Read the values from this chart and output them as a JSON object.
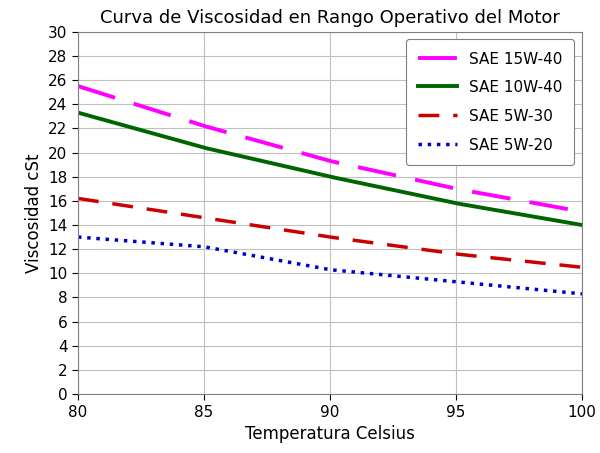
{
  "title": "Curva de Viscosidad en Rango Operativo del Motor",
  "xlabel": "Temperatura Celsius",
  "ylabel": "Viscosidad cSt",
  "xlim": [
    80,
    100
  ],
  "ylim": [
    0,
    30
  ],
  "xticks": [
    80,
    85,
    90,
    95,
    100
  ],
  "yticks": [
    0,
    2,
    4,
    6,
    8,
    10,
    12,
    14,
    16,
    18,
    20,
    22,
    24,
    26,
    28,
    30
  ],
  "series": [
    {
      "label": "SAE 15W-40",
      "x": [
        80,
        85,
        90,
        95,
        100
      ],
      "y": [
        25.5,
        22.2,
        19.3,
        17.0,
        15.1
      ],
      "color": "#FF00FF",
      "linestyle": "--",
      "linewidth": 2.8,
      "dashes": [
        10,
        5
      ]
    },
    {
      "label": "SAE 10W-40",
      "x": [
        80,
        85,
        90,
        95,
        100
      ],
      "y": [
        23.3,
        20.4,
        18.0,
        15.8,
        14.0
      ],
      "color": "#006400",
      "linestyle": "-",
      "linewidth": 2.8,
      "dashes": null
    },
    {
      "label": "SAE 5W-30",
      "x": [
        80,
        85,
        90,
        95,
        100
      ],
      "y": [
        16.2,
        14.6,
        13.0,
        11.6,
        10.5
      ],
      "color": "#CC0000",
      "linestyle": "--",
      "linewidth": 2.5,
      "dashes": [
        6,
        4
      ]
    },
    {
      "label": "SAE 5W-20",
      "x": [
        80,
        85,
        90,
        95,
        100
      ],
      "y": [
        13.0,
        12.2,
        10.3,
        9.3,
        8.3
      ],
      "color": "#0000CC",
      "linestyle": ":",
      "linewidth": 2.5,
      "dashes": null
    }
  ],
  "legend_loc": "upper right",
  "fig_facecolor": "#ffffff",
  "ax_facecolor": "#ffffff",
  "title_fontsize": 13,
  "label_fontsize": 12,
  "tick_fontsize": 11,
  "legend_fontsize": 11,
  "grid_color": "#c0c0c0",
  "border_color": "#808080"
}
